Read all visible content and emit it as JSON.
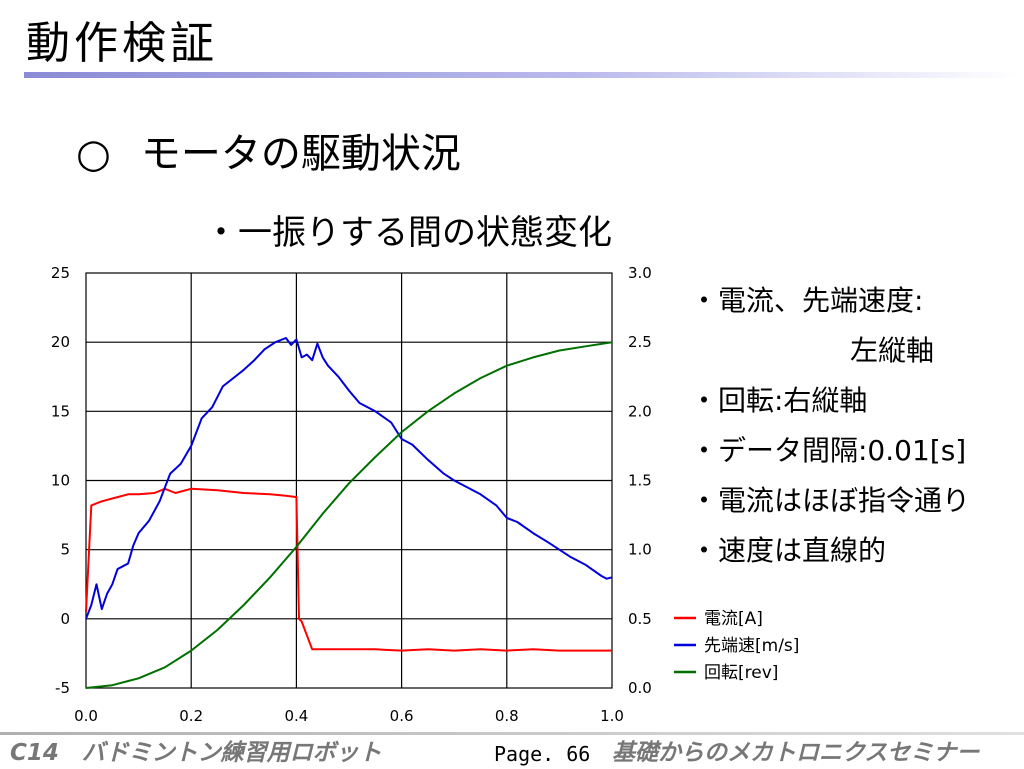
{
  "slide": {
    "title": "動作検証",
    "heading_mark": "○",
    "heading": "モータの駆動状況",
    "subheading": "・一振りする間の状態変化"
  },
  "notes": [
    "・電流、先端速度:",
    "左縦軸",
    "・回転:右縦軸",
    "・データ間隔:0.01[s]",
    "・電流はほぼ指令通り",
    "・速度は直線的"
  ],
  "footer": {
    "left": "C14　バドミントン練習用ロボット",
    "page": "Page. 66",
    "right": "基礎からのメカトロニクスセミナー"
  },
  "chart_data": {
    "type": "line",
    "title": "",
    "xlabel": "",
    "ylabel": "",
    "y2label": "",
    "xlim": [
      0.0,
      1.0
    ],
    "ylim": [
      -5,
      25
    ],
    "y2lim": [
      0.0,
      3.0
    ],
    "x_ticks": [
      "0.0",
      "0.2",
      "0.4",
      "0.6",
      "0.8",
      "1.0"
    ],
    "y_ticks": [
      "-5",
      "0",
      "5",
      "10",
      "15",
      "20",
      "25"
    ],
    "y2_ticks": [
      "0.0",
      "0.5",
      "1.0",
      "1.5",
      "2.0",
      "2.5",
      "3.0"
    ],
    "grid": true,
    "legend_position": "bottom-right",
    "series": [
      {
        "name": "電流[A]",
        "axis": "left",
        "color": "#ff0000",
        "x": [
          0.0,
          0.01,
          0.03,
          0.05,
          0.08,
          0.1,
          0.13,
          0.15,
          0.17,
          0.2,
          0.25,
          0.3,
          0.35,
          0.38,
          0.4,
          0.405,
          0.41,
          0.43,
          0.45,
          0.5,
          0.55,
          0.6,
          0.65,
          0.7,
          0.75,
          0.8,
          0.85,
          0.9,
          0.95,
          1.0
        ],
        "y": [
          0.5,
          8.2,
          8.5,
          8.7,
          9.0,
          9.0,
          9.1,
          9.4,
          9.1,
          9.4,
          9.3,
          9.1,
          9.0,
          8.9,
          8.8,
          0.0,
          -0.2,
          -2.2,
          -2.2,
          -2.2,
          -2.2,
          -2.3,
          -2.2,
          -2.3,
          -2.2,
          -2.3,
          -2.2,
          -2.3,
          -2.3,
          -2.3
        ]
      },
      {
        "name": "先端速[m/s]",
        "axis": "left",
        "color": "#0000dd",
        "x": [
          0.0,
          0.01,
          0.02,
          0.03,
          0.04,
          0.05,
          0.06,
          0.07,
          0.08,
          0.09,
          0.1,
          0.12,
          0.14,
          0.16,
          0.18,
          0.2,
          0.22,
          0.24,
          0.26,
          0.28,
          0.3,
          0.32,
          0.34,
          0.36,
          0.38,
          0.39,
          0.4,
          0.41,
          0.42,
          0.43,
          0.44,
          0.45,
          0.46,
          0.48,
          0.5,
          0.52,
          0.55,
          0.58,
          0.6,
          0.62,
          0.65,
          0.68,
          0.7,
          0.72,
          0.75,
          0.78,
          0.8,
          0.82,
          0.85,
          0.88,
          0.9,
          0.92,
          0.95,
          0.98,
          0.99,
          1.0
        ],
        "y": [
          0.0,
          1.0,
          2.5,
          0.7,
          1.8,
          2.5,
          3.6,
          3.8,
          4.0,
          5.3,
          6.2,
          7.1,
          8.5,
          10.5,
          11.2,
          12.5,
          14.5,
          15.3,
          16.8,
          17.4,
          18.0,
          18.7,
          19.5,
          20.0,
          20.3,
          19.8,
          20.2,
          18.9,
          19.1,
          18.7,
          19.9,
          18.9,
          18.3,
          17.5,
          16.5,
          15.6,
          15.0,
          14.2,
          13.0,
          12.6,
          11.5,
          10.5,
          10.0,
          9.6,
          9.0,
          8.2,
          7.3,
          7.0,
          6.2,
          5.5,
          5.0,
          4.5,
          3.9,
          3.1,
          2.9,
          3.0
        ]
      },
      {
        "name": "回転[rev]",
        "axis": "right",
        "color": "#007000",
        "x": [
          0.0,
          0.05,
          0.1,
          0.15,
          0.2,
          0.25,
          0.3,
          0.35,
          0.4,
          0.45,
          0.5,
          0.55,
          0.6,
          0.65,
          0.7,
          0.75,
          0.8,
          0.85,
          0.9,
          0.95,
          1.0
        ],
        "y": [
          0.0,
          0.02,
          0.07,
          0.15,
          0.27,
          0.42,
          0.6,
          0.8,
          1.02,
          1.26,
          1.48,
          1.67,
          1.85,
          2.0,
          2.13,
          2.24,
          2.33,
          2.39,
          2.44,
          2.47,
          2.5
        ]
      }
    ]
  }
}
